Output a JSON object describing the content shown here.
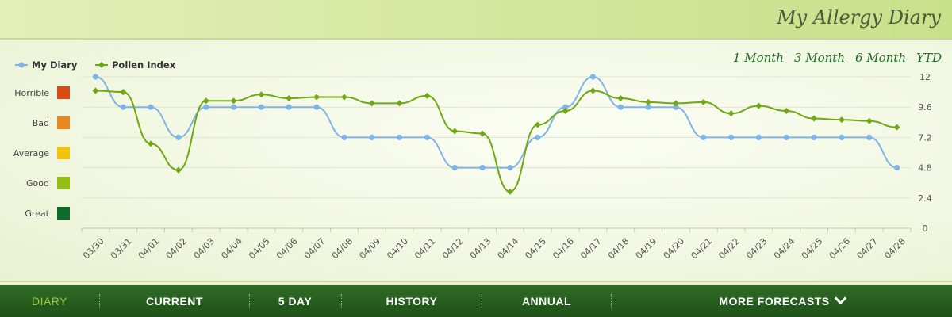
{
  "app_title": "My Allergy Diary",
  "ranges": [
    "1 Month",
    "3 Month",
    "6 Month",
    "YTD"
  ],
  "nav": {
    "items": [
      "DIARY",
      "CURRENT",
      "5 DAY",
      "HISTORY",
      "ANNUAL",
      "MORE FORECASTS"
    ],
    "active": "DIARY"
  },
  "levels": [
    {
      "label": "Horrible",
      "color": "#d84a12"
    },
    {
      "label": "Bad",
      "color": "#e8891e"
    },
    {
      "label": "Average",
      "color": "#f2c20f"
    },
    {
      "label": "Good",
      "color": "#92bf12"
    },
    {
      "label": "Great",
      "color": "#0f6a2c"
    }
  ],
  "chart_data": {
    "type": "line",
    "categories": [
      "03/30",
      "03/31",
      "04/01",
      "04/02",
      "04/03",
      "04/04",
      "04/05",
      "04/06",
      "04/07",
      "04/08",
      "04/09",
      "04/10",
      "04/11",
      "04/12",
      "04/13",
      "04/14",
      "04/15",
      "04/16",
      "04/17",
      "04/18",
      "04/19",
      "04/20",
      "04/21",
      "04/22",
      "04/23",
      "04/24",
      "04/25",
      "04/26",
      "04/27",
      "04/28"
    ],
    "series": [
      {
        "name": "My Diary",
        "color": "#7fb4e6",
        "values": [
          12,
          9.6,
          9.6,
          7.2,
          9.6,
          9.6,
          9.6,
          9.6,
          9.6,
          7.2,
          7.2,
          7.2,
          7.2,
          4.8,
          4.8,
          4.8,
          7.2,
          9.6,
          12,
          9.6,
          9.6,
          9.6,
          7.2,
          7.2,
          7.2,
          7.2,
          7.2,
          7.2,
          7.2,
          4.8
        ]
      },
      {
        "name": "Pollen Index",
        "color": "#6fa812",
        "values": [
          10.9,
          10.8,
          6.7,
          4.6,
          10.1,
          10.1,
          10.6,
          10.3,
          10.4,
          10.4,
          9.9,
          9.9,
          10.5,
          7.7,
          7.5,
          2.9,
          8.2,
          9.3,
          10.9,
          10.3,
          10.0,
          9.9,
          10.0,
          9.1,
          9.7,
          9.3,
          8.7,
          8.6,
          8.5,
          8.0
        ]
      }
    ],
    "y_ticks": [
      "12",
      "9.6",
      "7.2",
      "4.8",
      "2.4",
      "0"
    ],
    "ylim": [
      0,
      12
    ],
    "grid": true,
    "legend_position": "top-left"
  }
}
